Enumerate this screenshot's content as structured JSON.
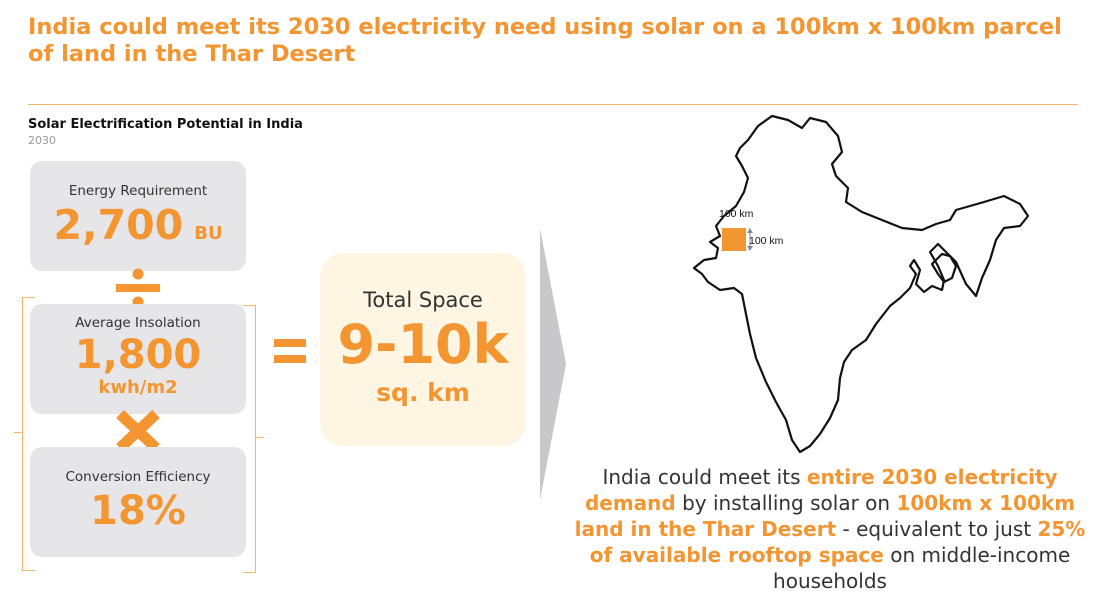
{
  "header": {
    "title": "India could meet its 2030 electricity need using solar on a 100km x 100km parcel of land in the Thar Desert"
  },
  "chart": {
    "title": "Solar Electrification Potential in India",
    "year": "2030"
  },
  "cards": {
    "energy": {
      "label": "Energy Requirement",
      "value": "2,700",
      "unit": "BU"
    },
    "insolation": {
      "label": "Average Insolation",
      "value": "1,800",
      "unit": "kwh/m2"
    },
    "efficiency": {
      "label": "Conversion Efficiency",
      "value": "18%"
    }
  },
  "total": {
    "label": "Total Space",
    "value": "9-10k",
    "unit": "sq. km"
  },
  "map": {
    "width_label": "100 km",
    "height_label": "100 km"
  },
  "caption": {
    "p1": "India could meet its ",
    "h1": "entire 2030 electricity demand",
    "p2": " by installing solar on ",
    "h2": "100km x 100km land in the Thar Desert",
    "p3": " - equivalent to just ",
    "h3": "25% of available rooftop space",
    "p4": " on middle-income households"
  },
  "colors": {
    "accent": "#f39531",
    "card_bg": "#e6e6e8",
    "total_bg": "#fef5e2"
  }
}
